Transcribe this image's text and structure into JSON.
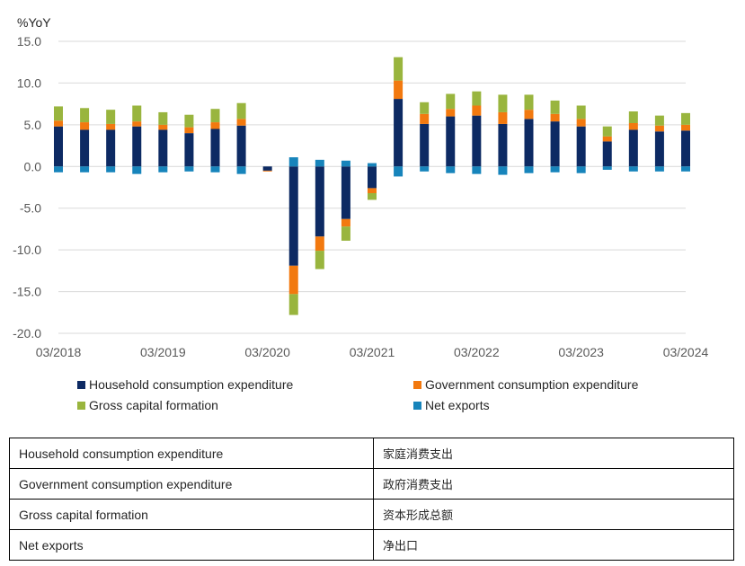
{
  "chart_data": {
    "type": "bar",
    "stacked": true,
    "ylabel": "%YoY",
    "ylim": [
      -20,
      15
    ],
    "yticks": [
      -20,
      -15,
      -10,
      -5,
      0,
      5,
      10,
      15
    ],
    "ytick_labels": [
      "-20.0",
      "-15.0",
      "-10.0",
      "-5.0",
      "0.0",
      "5.0",
      "10.0",
      "15.0"
    ],
    "grid": "horizontal",
    "legend_position": "bottom",
    "categories": [
      "03/2018",
      "06/2018",
      "09/2018",
      "12/2018",
      "03/2019",
      "06/2019",
      "09/2019",
      "12/2019",
      "03/2020",
      "06/2020",
      "09/2020",
      "12/2020",
      "03/2021",
      "06/2021",
      "09/2021",
      "12/2021",
      "03/2022",
      "06/2022",
      "09/2022",
      "12/2022",
      "03/2023",
      "06/2023",
      "09/2023",
      "12/2023",
      "03/2024"
    ],
    "x_tick_labels": [
      {
        "index": 0,
        "label": "03/2018"
      },
      {
        "index": 4,
        "label": "03/2019"
      },
      {
        "index": 8,
        "label": "03/2020"
      },
      {
        "index": 12,
        "label": "03/2021"
      },
      {
        "index": 16,
        "label": "03/2022"
      },
      {
        "index": 20,
        "label": "03/2023"
      },
      {
        "index": 24,
        "label": "03/2024"
      }
    ],
    "series": [
      {
        "name": "Household consumption expenditure",
        "color": "#0d2a63",
        "values": [
          4.8,
          4.4,
          4.4,
          4.8,
          4.4,
          4.0,
          4.5,
          4.9,
          -0.5,
          -11.9,
          -8.4,
          -6.3,
          -2.6,
          8.1,
          5.1,
          6.0,
          6.1,
          5.1,
          5.7,
          5.4,
          4.8,
          3.0,
          4.4,
          4.2,
          4.3
        ]
      },
      {
        "name": "Government consumption expenditure",
        "color": "#f2790f",
        "values": [
          0.7,
          0.9,
          0.7,
          0.6,
          0.6,
          0.7,
          0.8,
          0.8,
          -0.1,
          -3.4,
          -1.7,
          -0.9,
          -0.6,
          2.2,
          1.2,
          0.9,
          1.2,
          1.4,
          1.1,
          0.9,
          0.9,
          0.6,
          0.8,
          0.7,
          0.7
        ]
      },
      {
        "name": "Gross capital formation",
        "color": "#99b53e",
        "values": [
          1.7,
          1.7,
          1.7,
          1.9,
          1.5,
          1.5,
          1.6,
          1.9,
          0,
          -2.5,
          -2.2,
          -1.7,
          -0.8,
          2.8,
          1.4,
          1.8,
          1.7,
          2.1,
          1.8,
          1.6,
          1.6,
          1.2,
          1.4,
          1.2,
          1.4
        ]
      },
      {
        "name": "Net exports",
        "color": "#1784bb",
        "values": [
          -0.7,
          -0.7,
          -0.7,
          -0.9,
          -0.7,
          -0.6,
          -0.7,
          -0.9,
          0,
          1.1,
          0.8,
          0.7,
          0.4,
          -1.2,
          -0.6,
          -0.8,
          -0.9,
          -1.0,
          -0.8,
          -0.7,
          -0.8,
          -0.4,
          -0.6,
          -0.6,
          -0.6
        ]
      }
    ]
  },
  "translation_table": [
    {
      "en": "Household consumption expenditure",
      "zh": "家庭消费支出"
    },
    {
      "en": "Government consumption expenditure",
      "zh": "政府消费支出"
    },
    {
      "en": "Gross capital formation",
      "zh": "资本形成总额"
    },
    {
      "en": "Net exports",
      "zh": "净出口"
    }
  ]
}
